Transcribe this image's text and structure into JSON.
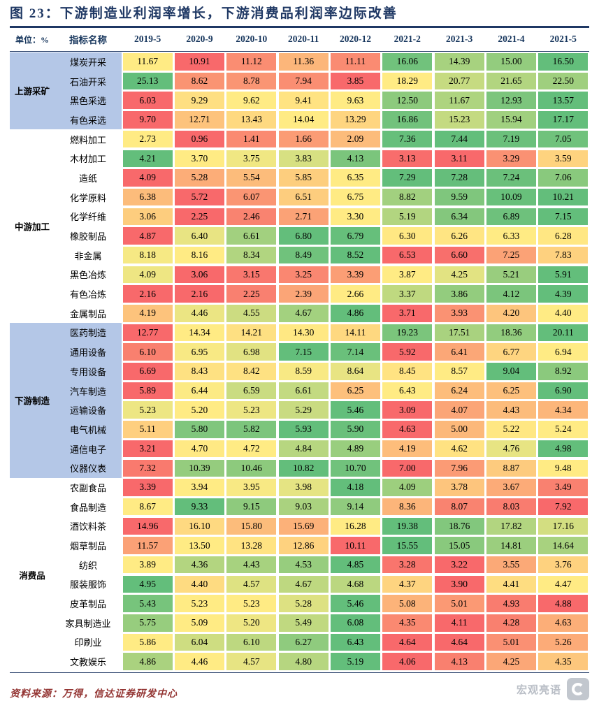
{
  "table": {
    "unit_label": "单位：%",
    "name_header": "指标名称",
    "tints": {
      "blue": "#B4C7E7",
      "white": "#FFFFFF"
    }
  },
  "colors": {
    "title_navy": "#1F3864",
    "header_navy": "#17365D",
    "source_text_red": "#943634",
    "watermark_gray": "#B9BEC6"
  },
  "footer": {
    "source": "资料来源：万得，信达证券研发中心"
  },
  "watermark": {
    "text": "宏观亮语"
  },
  "chart_data": {
    "type": "heatmap",
    "title": "图 23：下游制造业利润率增长，下游消费品利润率边际改善",
    "unit": "%",
    "columns": [
      "2019-5",
      "2020-9",
      "2020-10",
      "2020-11",
      "2020-12",
      "2021-2",
      "2021-3",
      "2021-4",
      "2021-5"
    ],
    "color_scale": {
      "low": "#F8696B",
      "mid": "#FFEB84",
      "high": "#63BE7B",
      "mode": "per-row min/median/max, red-yellow-green"
    },
    "groups": [
      {
        "name": "上游采矿",
        "tint": "blue",
        "rows": [
          {
            "name": "煤炭开采",
            "values": [
              11.67,
              10.91,
              11.12,
              11.36,
              11.11,
              16.06,
              14.39,
              15.0,
              16.5
            ]
          },
          {
            "name": "石油开采",
            "values": [
              25.13,
              8.62,
              8.78,
              7.94,
              3.85,
              18.29,
              20.77,
              21.65,
              22.5
            ]
          },
          {
            "name": "黑色采选",
            "values": [
              6.03,
              9.29,
              9.62,
              9.41,
              9.63,
              12.5,
              11.67,
              12.93,
              13.57
            ]
          },
          {
            "name": "有色采选",
            "values": [
              9.7,
              12.71,
              13.43,
              14.04,
              13.29,
              16.86,
              15.23,
              15.94,
              17.17
            ]
          }
        ]
      },
      {
        "name": "中游加工",
        "tint": "white",
        "rows": [
          {
            "name": "燃料加工",
            "values": [
              2.73,
              0.96,
              1.41,
              1.66,
              2.09,
              7.36,
              7.44,
              7.19,
              7.05
            ]
          },
          {
            "name": "木材加工",
            "values": [
              4.21,
              3.7,
              3.75,
              3.83,
              4.13,
              3.13,
              3.11,
              3.29,
              3.59
            ]
          },
          {
            "name": "造纸",
            "values": [
              4.09,
              5.28,
              5.54,
              5.85,
              6.35,
              7.29,
              7.28,
              7.24,
              7.06
            ]
          },
          {
            "name": "化学原料",
            "values": [
              6.38,
              5.72,
              6.07,
              6.51,
              6.75,
              8.82,
              9.59,
              10.09,
              10.21
            ]
          },
          {
            "name": "化学纤维",
            "values": [
              3.06,
              2.25,
              2.46,
              2.71,
              3.3,
              5.19,
              6.34,
              6.89,
              7.15
            ]
          },
          {
            "name": "橡胶制品",
            "values": [
              4.87,
              6.4,
              6.61,
              6.8,
              6.79,
              6.3,
              6.26,
              6.33,
              6.28
            ]
          },
          {
            "name": "非金属",
            "values": [
              8.18,
              8.16,
              8.34,
              8.49,
              8.52,
              6.53,
              6.6,
              7.25,
              7.83
            ]
          },
          {
            "name": "黑色冶炼",
            "values": [
              4.09,
              3.06,
              3.15,
              3.25,
              3.39,
              3.87,
              4.25,
              5.21,
              5.91
            ]
          },
          {
            "name": "有色冶炼",
            "values": [
              2.16,
              2.16,
              2.25,
              2.39,
              2.66,
              3.37,
              3.86,
              4.12,
              4.39
            ]
          },
          {
            "name": "金属制品",
            "values": [
              4.19,
              4.46,
              4.55,
              4.67,
              4.86,
              3.71,
              3.93,
              4.2,
              4.4
            ]
          }
        ]
      },
      {
        "name": "下游制造",
        "tint": "blue",
        "rows": [
          {
            "name": "医药制造",
            "values": [
              12.77,
              14.34,
              14.21,
              14.3,
              14.11,
              19.23,
              17.51,
              18.36,
              20.11
            ]
          },
          {
            "name": "通用设备",
            "values": [
              6.1,
              6.95,
              6.98,
              7.15,
              7.14,
              5.92,
              6.41,
              6.77,
              6.94
            ]
          },
          {
            "name": "专用设备",
            "values": [
              6.69,
              8.43,
              8.42,
              8.59,
              8.64,
              8.45,
              8.57,
              9.04,
              8.92
            ]
          },
          {
            "name": "汽车制造",
            "values": [
              5.89,
              6.44,
              6.59,
              6.61,
              6.25,
              6.43,
              6.24,
              6.25,
              6.9
            ]
          },
          {
            "name": "运输设备",
            "values": [
              5.23,
              5.2,
              5.23,
              5.29,
              5.46,
              3.09,
              4.07,
              4.43,
              4.34
            ]
          },
          {
            "name": "电气机械",
            "values": [
              5.11,
              5.8,
              5.82,
              5.93,
              5.9,
              4.63,
              5.0,
              5.22,
              5.24
            ]
          },
          {
            "name": "通信电子",
            "values": [
              3.21,
              4.7,
              4.72,
              4.84,
              4.89,
              4.19,
              4.62,
              4.76,
              4.98
            ]
          },
          {
            "name": "仪器仪表",
            "values": [
              7.32,
              10.39,
              10.46,
              10.82,
              10.7,
              7.0,
              7.96,
              8.87,
              9.48
            ]
          }
        ]
      },
      {
        "name": "消费品",
        "tint": "white",
        "rows": [
          {
            "name": "农副食品",
            "values": [
              3.39,
              3.94,
              3.95,
              3.98,
              4.18,
              4.09,
              3.78,
              3.67,
              3.49
            ]
          },
          {
            "name": "食品制造",
            "values": [
              8.67,
              9.33,
              9.15,
              9.03,
              9.14,
              8.36,
              8.07,
              8.03,
              7.92
            ]
          },
          {
            "name": "酒饮料茶",
            "values": [
              14.96,
              16.1,
              15.8,
              15.69,
              16.28,
              19.38,
              18.76,
              17.82,
              17.16
            ]
          },
          {
            "name": "烟草制品",
            "values": [
              11.57,
              13.5,
              13.28,
              12.86,
              10.11,
              15.55,
              15.05,
              14.81,
              14.64
            ]
          },
          {
            "name": "纺织",
            "values": [
              3.89,
              4.36,
              4.43,
              4.53,
              4.85,
              3.28,
              3.22,
              3.55,
              3.76
            ]
          },
          {
            "name": "服装服饰",
            "values": [
              4.95,
              4.4,
              4.57,
              4.67,
              4.68,
              4.37,
              3.9,
              4.41,
              4.47
            ]
          },
          {
            "name": "皮革制品",
            "values": [
              5.43,
              5.23,
              5.23,
              5.28,
              5.46,
              5.08,
              5.01,
              4.93,
              4.88
            ]
          },
          {
            "name": "家具制造业",
            "values": [
              5.75,
              5.09,
              5.2,
              5.49,
              6.08,
              4.35,
              4.11,
              4.28,
              4.63
            ]
          },
          {
            "name": "印刷业",
            "values": [
              5.86,
              6.04,
              6.1,
              6.27,
              6.43,
              4.64,
              4.64,
              5.01,
              5.26
            ]
          },
          {
            "name": "文教娱乐",
            "values": [
              4.86,
              4.46,
              4.57,
              4.8,
              5.19,
              4.06,
              4.13,
              4.25,
              4.35
            ]
          }
        ]
      }
    ]
  }
}
